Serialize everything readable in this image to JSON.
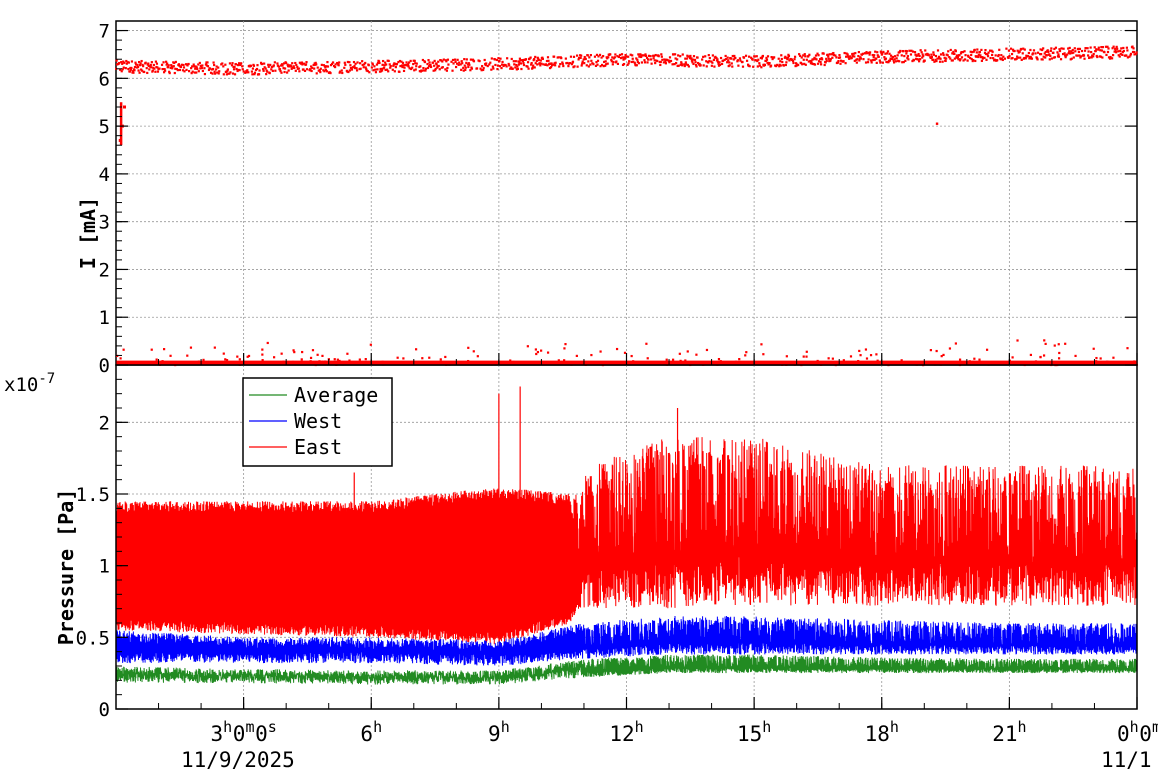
{
  "chart_data": [
    {
      "type": "scatter",
      "panel": "current",
      "ylabel": "I [mA]",
      "ylim": [
        0,
        7.2
      ],
      "yticks": [
        "0",
        "1",
        "2",
        "3",
        "4",
        "5",
        "6",
        "7"
      ],
      "grid": true,
      "color": "#ff0000",
      "x_range_hours": [
        0,
        24
      ],
      "series": [
        {
          "values_description_free": true,
          "band_main": {
            "hours": [
              0,
              3,
              6,
              9,
              12,
              15,
              18,
              21,
              24
            ],
            "mA": [
              6.25,
              6.2,
              6.25,
              6.3,
              6.4,
              6.35,
              6.45,
              6.5,
              6.55
            ]
          },
          "band_zero": 0.05,
          "spike_early": {
            "hours": [
              0.1,
              0.15,
              0.2
            ],
            "mA": [
              4.7,
              5.0,
              5.4
            ]
          },
          "outlier": {
            "hours": 19.3,
            "mA": 5.05
          }
        }
      ]
    },
    {
      "type": "line",
      "panel": "pressure",
      "ylabel": "Pressure [Pa]",
      "yscale_label": "x10",
      "yscale_exp": "-7",
      "ylim": [
        0,
        2.4
      ],
      "yticks": [
        "0",
        "0.5",
        "1",
        "1.5",
        "2"
      ],
      "grid": true,
      "legend": {
        "position": "top-left",
        "entries": [
          {
            "name": "Average",
            "color": "#228b22"
          },
          {
            "name": "West",
            "color": "#0000ff"
          },
          {
            "name": "East",
            "color": "#ff0000"
          }
        ]
      },
      "series": [
        {
          "name": "East",
          "color": "#ff0000",
          "hours": [
            0,
            3,
            6,
            9,
            10.7,
            11,
            13,
            15,
            18,
            21,
            24
          ],
          "low": [
            0.55,
            0.52,
            0.5,
            0.45,
            0.6,
            0.7,
            0.7,
            0.72,
            0.72,
            0.72,
            0.72
          ],
          "high": [
            1.45,
            1.45,
            1.45,
            1.55,
            1.5,
            1.7,
            1.9,
            1.9,
            1.7,
            1.7,
            1.7
          ]
        },
        {
          "name": "West",
          "color": "#0000ff",
          "hours": [
            0,
            3,
            6,
            9,
            11,
            13,
            15,
            18,
            21,
            24
          ],
          "low": [
            0.32,
            0.32,
            0.32,
            0.3,
            0.35,
            0.38,
            0.38,
            0.38,
            0.38,
            0.38
          ],
          "high": [
            0.55,
            0.5,
            0.5,
            0.48,
            0.6,
            0.65,
            0.65,
            0.62,
            0.6,
            0.6
          ]
        },
        {
          "name": "Average",
          "color": "#228b22",
          "hours": [
            0,
            3,
            6,
            9,
            11,
            13,
            15,
            18,
            21,
            24
          ],
          "low": [
            0.18,
            0.18,
            0.17,
            0.17,
            0.22,
            0.25,
            0.25,
            0.25,
            0.25,
            0.25
          ],
          "high": [
            0.3,
            0.28,
            0.27,
            0.27,
            0.35,
            0.38,
            0.38,
            0.36,
            0.35,
            0.35
          ]
        }
      ],
      "spikes_east": [
        {
          "hours": 9.0,
          "value": 2.2
        },
        {
          "hours": 9.5,
          "value": 2.25
        },
        {
          "hours": 13.2,
          "value": 2.1
        },
        {
          "hours": 5.6,
          "value": 1.65
        }
      ]
    }
  ],
  "xaxis": {
    "ticks": [
      {
        "hours": 3,
        "label": "3",
        "sup": "h",
        "label2": "0",
        "sup2": "m",
        "label3": "0",
        "sup3": "s"
      },
      {
        "hours": 6,
        "label": "6",
        "sup": "h"
      },
      {
        "hours": 9,
        "label": "9",
        "sup": "h"
      },
      {
        "hours": 12,
        "label": "12",
        "sup": "h"
      },
      {
        "hours": 15,
        "label": "15",
        "sup": "h"
      },
      {
        "hours": 18,
        "label": "18",
        "sup": "h"
      },
      {
        "hours": 21,
        "label": "21",
        "sup": "h"
      },
      {
        "hours": 24,
        "label": "0",
        "sup": "h",
        "label2": "0",
        "sup2": "m"
      }
    ],
    "date_start": "11/9/2025",
    "date_end": "11/1"
  }
}
